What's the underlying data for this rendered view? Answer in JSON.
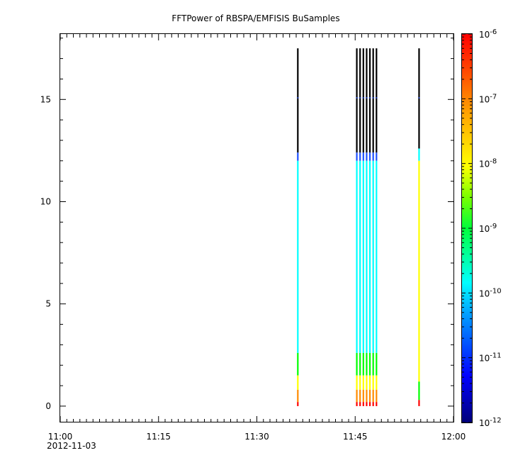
{
  "chart_data": {
    "type": "heatmap",
    "title": "FFTPower of RBSPA/EMFISIS  BuSamples",
    "xlabel": "",
    "ylabel": "",
    "x_range": [
      "11:00",
      "12:00"
    ],
    "x_ticks": [
      "11:00",
      "11:15",
      "11:30",
      "11:45",
      "12:00"
    ],
    "x_date_label": "2012-11-03",
    "ylim": [
      -0.8,
      18.2
    ],
    "y_ticks": [
      0,
      5,
      10,
      15
    ],
    "colorbar": {
      "scale": "log",
      "range": [
        1e-12,
        1e-06
      ],
      "colormap": "rainbow (dark blue to red)",
      "tick_labels": [
        {
          "base": "10",
          "exp": "-12",
          "value": 1e-12
        },
        {
          "base": "10",
          "exp": "-11",
          "value": 1e-11
        },
        {
          "base": "10",
          "exp": "-10",
          "value": 1e-10
        },
        {
          "base": "10",
          "exp": "-9",
          "value": 1e-09
        },
        {
          "base": "10",
          "exp": "-8",
          "value": 1e-08
        },
        {
          "base": "10",
          "exp": "-7",
          "value": 1e-07
        },
        {
          "base": "10",
          "exp": "-6",
          "value": 1e-06
        }
      ]
    },
    "y_max_data": 17.5,
    "bursts": [
      {
        "time": "11:36:15",
        "color_profile": "standard"
      },
      {
        "time": "11:45:15",
        "color_profile": "standard"
      },
      {
        "time": "11:45:45",
        "color_profile": "standard"
      },
      {
        "time": "11:46:15",
        "color_profile": "standard"
      },
      {
        "time": "11:46:45",
        "color_profile": "standard"
      },
      {
        "time": "11:47:15",
        "color_profile": "standard"
      },
      {
        "time": "11:47:45",
        "color_profile": "standard"
      },
      {
        "time": "11:48:15",
        "color_profile": "standard"
      },
      {
        "time": "11:54:45",
        "color_profile": "warm"
      }
    ],
    "colors": {
      "black": "#000000",
      "dark_blue": "#00008c",
      "blue": "#1e50ff",
      "cyan": "#00ffff",
      "green": "#00ff00",
      "yellow": "#ffff00",
      "orange": "#ff8c00",
      "red": "#ff0000"
    }
  }
}
